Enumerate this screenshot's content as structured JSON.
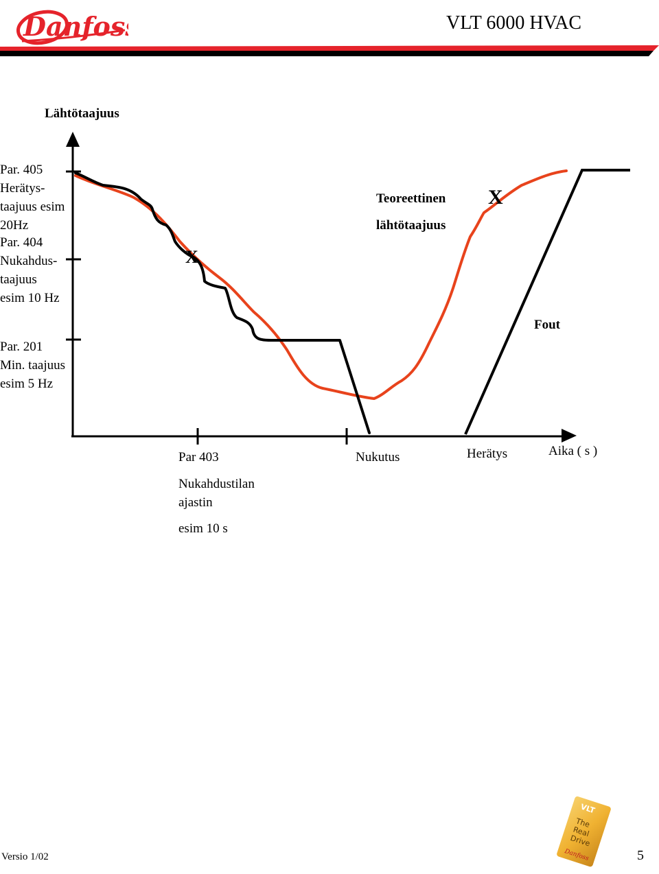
{
  "header": {
    "brand": "Danfoss",
    "title": "VLT 6000 HVAC"
  },
  "diagram": {
    "y_axis_title": "Lähtötaajuus",
    "y_labels": {
      "wake": [
        "Par. 405",
        "Herätys-",
        "taajuus esim",
        "20Hz"
      ],
      "sleep": [
        "Par. 404",
        "Nukahdus-",
        "taajuus",
        "esim 10 Hz"
      ],
      "min": [
        "Par. 201",
        "Min. taajuus",
        "esim 5 Hz"
      ]
    },
    "theoretical_label": [
      "Teoreettinen",
      "lähtötaajuus"
    ],
    "marker_left": "X",
    "marker_right": "X",
    "fout_label": "Fout",
    "x_labels": {
      "par403": "Par 403",
      "timer": [
        "Nukahdustilan",
        "ajastin"
      ],
      "example": "esim 10 s",
      "sleep": "Nukutus",
      "wake": "Herätys",
      "time": "Aika ( s )"
    },
    "colors": {
      "theoretical_curve": "#e8431c",
      "output_curve": "#000000"
    }
  },
  "badge": {
    "top": "VLT",
    "lines": [
      "The",
      "Real",
      "Drive"
    ],
    "brand": "Danfoss"
  },
  "footer": {
    "version": "Versio 1/02",
    "page": "5"
  },
  "colors": {
    "brand_red": "#e5232b",
    "badge_gold": "#f0b232"
  }
}
